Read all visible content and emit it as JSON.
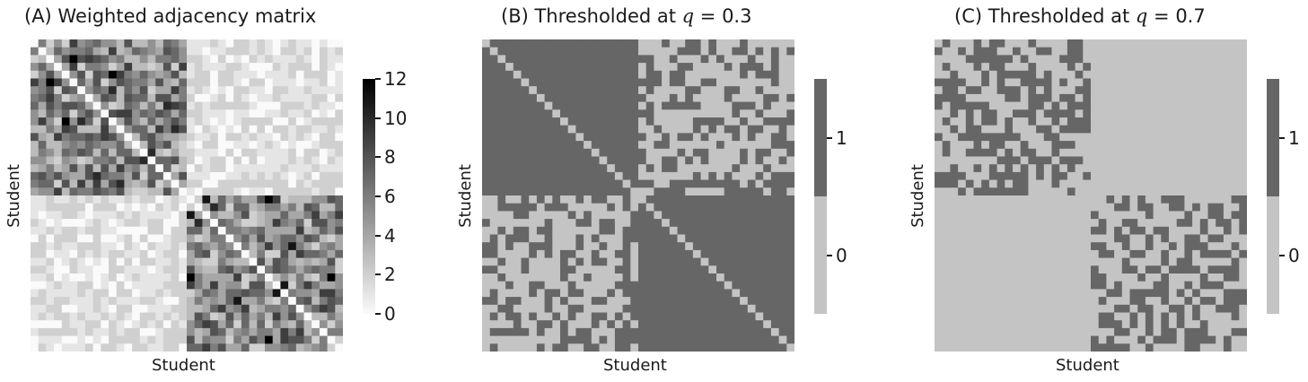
{
  "panels": [
    {
      "title_text": "(A) Weighted adjacency matrix",
      "xlabel": "Student",
      "ylabel": "Student",
      "colorbar_ticks": [
        "0",
        "2",
        "4",
        "6",
        "8",
        "10",
        "12"
      ]
    },
    {
      "title_prefix": "(B) Thresholded at ",
      "title_var": "q",
      "title_suffix": " = 0.3",
      "xlabel": "Student",
      "ylabel": "Student",
      "colorbar_ticks": [
        "0",
        "1"
      ]
    },
    {
      "title_prefix": "(C) Thresholded at ",
      "title_var": "q",
      "title_suffix": " = 0.7",
      "xlabel": "Student",
      "ylabel": "Student",
      "colorbar_ticks": [
        "0",
        "1"
      ]
    }
  ],
  "chart_data": [
    {
      "type": "heatmap",
      "title": "(A) Weighted adjacency matrix",
      "xlabel": "Student",
      "ylabel": "Student",
      "n": 40,
      "blocks": [
        20,
        20
      ],
      "colormap": "Greys",
      "vmin": 0,
      "vmax": 12,
      "approx_mean_within_block": 5.5,
      "approx_mean_between_block": 1.2,
      "colorbar_ticks": [
        0,
        2,
        4,
        6,
        8,
        10,
        12
      ]
    },
    {
      "type": "heatmap",
      "title": "(B) Thresholded at q = 0.3",
      "xlabel": "Student",
      "ylabel": "Student",
      "n": 40,
      "blocks": [
        20,
        20
      ],
      "binary": true,
      "colors": {
        "0": "#c4c4c4",
        "1": "#666666"
      },
      "approx_edge_density_within_block": 0.97,
      "approx_edge_density_between_block": 0.45,
      "colorbar_ticks": [
        0,
        1
      ]
    },
    {
      "type": "heatmap",
      "title": "(C) Thresholded at q = 0.7",
      "xlabel": "Student",
      "ylabel": "Student",
      "n": 40,
      "blocks": [
        20,
        20
      ],
      "binary": true,
      "colors": {
        "0": "#c4c4c4",
        "1": "#666666"
      },
      "approx_edge_density_within_block": 0.62,
      "approx_edge_density_between_block": 0.04,
      "colorbar_ticks": [
        0,
        1
      ]
    }
  ]
}
